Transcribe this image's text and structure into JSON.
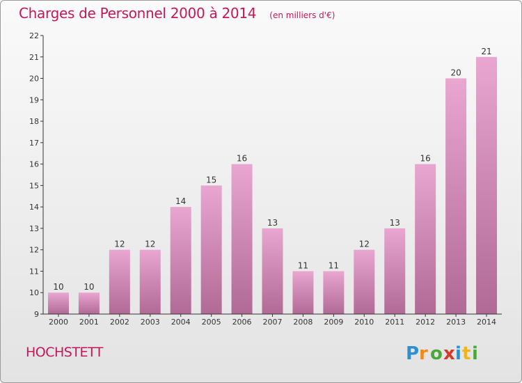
{
  "header": {
    "title": "Charges de Personnel 2000 à 2014",
    "subtitle": "(en milliers d'€)"
  },
  "footer": {
    "commune": "HOCHSTETT",
    "logo_text": "Proxiti"
  },
  "colors": {
    "accent": "#c2185b",
    "bar_light": "#e8a6d0",
    "bar_dark": "#b06a95"
  },
  "chart_data": {
    "type": "bar",
    "categories": [
      "2000",
      "2001",
      "2002",
      "2003",
      "2004",
      "2005",
      "2006",
      "2007",
      "2008",
      "2009",
      "2010",
      "2011",
      "2012",
      "2013",
      "2014"
    ],
    "values": [
      10,
      10,
      12,
      12,
      14,
      15,
      16,
      13,
      11,
      11,
      12,
      13,
      16,
      20,
      21
    ],
    "data_labels": [
      "10",
      "10",
      "12",
      "12",
      "14",
      "15",
      "16",
      "13",
      "11",
      "11",
      "12",
      "13",
      "16",
      "20",
      "21"
    ],
    "ylim": [
      9,
      22
    ],
    "yticks": [
      9,
      10,
      11,
      12,
      13,
      14,
      15,
      16,
      17,
      18,
      19,
      20,
      21,
      22
    ],
    "ytick_labels": [
      "9",
      "10",
      "11",
      "12",
      "13",
      "14",
      "15",
      "16",
      "17",
      "18",
      "19",
      "20",
      "21",
      "22"
    ],
    "grid": false
  }
}
